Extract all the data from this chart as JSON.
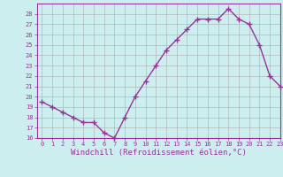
{
  "x": [
    0,
    1,
    2,
    3,
    4,
    5,
    6,
    7,
    8,
    9,
    10,
    11,
    12,
    13,
    14,
    15,
    16,
    17,
    18,
    19,
    20,
    21,
    22,
    23
  ],
  "y": [
    19.5,
    19.0,
    18.5,
    18.0,
    17.5,
    17.5,
    16.5,
    16.0,
    18.0,
    20.0,
    21.5,
    23.0,
    24.5,
    25.5,
    26.5,
    27.5,
    27.5,
    27.5,
    28.5,
    27.5,
    27.0,
    25.0,
    22.0,
    21.0
  ],
  "line_color": "#993399",
  "marker": "+",
  "markersize": 4,
  "linewidth": 1.0,
  "bg_color": "#cceeee",
  "grid_color": "#aaaaaa",
  "xlabel": "Windchill (Refroidissement éolien,°C)",
  "ylim": [
    16,
    29
  ],
  "xlim": [
    -0.5,
    23
  ],
  "yticks": [
    16,
    17,
    18,
    19,
    20,
    21,
    22,
    23,
    24,
    25,
    26,
    27,
    28
  ],
  "xticks": [
    0,
    1,
    2,
    3,
    4,
    5,
    6,
    7,
    8,
    9,
    10,
    11,
    12,
    13,
    14,
    15,
    16,
    17,
    18,
    19,
    20,
    21,
    22,
    23
  ],
  "tick_color": "#993399",
  "tick_fontsize": 5,
  "xlabel_fontsize": 6.5,
  "axis_color": "#993399"
}
